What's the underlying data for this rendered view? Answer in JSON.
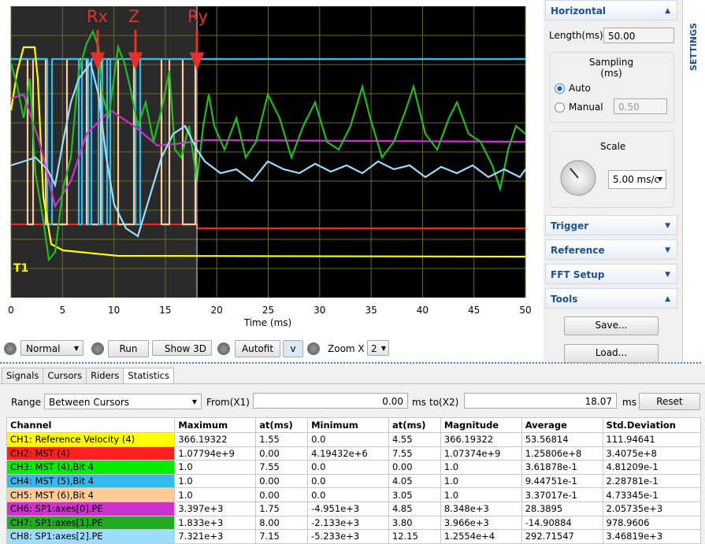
{
  "scope": {
    "xlim": [
      0,
      50
    ],
    "xticks": [
      0,
      5,
      10,
      15,
      20,
      25,
      30,
      35,
      40,
      45,
      50
    ],
    "x_label": "Time (ms)",
    "cursor_x": 18.07,
    "markers": [
      "Rx",
      "Z",
      "Ry"
    ],
    "trigger_label": "T1"
  },
  "toolbar": {
    "mode": "Normal",
    "run": "Run",
    "show3d": "Show 3D",
    "autofit": "Autofit",
    "v": "v",
    "zoom_label": "Zoom X",
    "zoom_value": "2"
  },
  "tabs": [
    "Signals",
    "Cursors",
    "Riders",
    "Statistics"
  ],
  "range": {
    "label": "Range",
    "mode": "Between Cursors",
    "from_label": "From(X1)",
    "from_value": "0.00",
    "from_unit": "ms",
    "to_label": "to(X2)",
    "to_value": "18.07",
    "to_unit": "ms",
    "reset": "Reset"
  },
  "table": {
    "headers": [
      "Channel",
      "Maximum",
      "at(ms)",
      "Minimum",
      "at(ms)",
      "Magnitude",
      "Average",
      "Std.Deviation"
    ],
    "channel_colors": [
      "#ffff00",
      "#ff2020",
      "#00ee00",
      "#33bbee",
      "#ffcc99",
      "#cc33cc",
      "#22aa22",
      "#99ddff"
    ],
    "rows": [
      [
        "CH1: Reference Velocity (4)",
        "366.19322",
        "1.55",
        "0.0",
        "4.55",
        "366.19322",
        "53.56814",
        "111.94641"
      ],
      [
        "CH2: MST (4)",
        "1.07794e+9",
        "0.00",
        "4.19432e+6",
        "7.55",
        "1.07374e+9",
        "1.25806e+8",
        "3.4075e+8"
      ],
      [
        "CH3: MST (4),Bit 4",
        "1.0",
        "7.55",
        "0.0",
        "0.00",
        "1.0",
        "3.61878e-1",
        "4.81209e-1"
      ],
      [
        "CH4: MST (5),Bit 4",
        "1.0",
        "0.00",
        "0.0",
        "4.05",
        "1.0",
        "9.44751e-1",
        "2.28781e-1"
      ],
      [
        "CH5: MST (6),Bit 4",
        "1.0",
        "0.00",
        "0.0",
        "3.05",
        "1.0",
        "3.37017e-1",
        "4.73345e-1"
      ],
      [
        "CH6: SP1:axes[0].PE",
        "3.397e+3",
        "1.75",
        "-4.951e+3",
        "4.85",
        "8.348e+3",
        "28.3895",
        "2.05735e+3"
      ],
      [
        "CH7: SP1:axes[1].PE",
        "1.833e+3",
        "8.00",
        "-2.133e+3",
        "3.80",
        "3.966e+3",
        "-14.90884",
        "978.9606"
      ],
      [
        "CH8: SP1:axes[2].PE",
        "7.321e+3",
        "7.15",
        "-5.233e+3",
        "12.15",
        "1.2554e+4",
        "292.71547",
        "3.46819e+3"
      ]
    ]
  },
  "settings": {
    "tab": "SETTINGS",
    "horizontal": "Horizontal",
    "length_label": "Length(ms)",
    "length_value": "50.00",
    "sampling": "Sampling (ms)",
    "auto": "Auto",
    "manual": "Manual",
    "manual_value": "0.50",
    "scale": "Scale",
    "scale_value": "5.00 ms/c",
    "trigger": "Trigger",
    "reference": "Reference",
    "fft": "FFT Setup",
    "tools": "Tools",
    "save": "Save...",
    "load": "Load..."
  }
}
